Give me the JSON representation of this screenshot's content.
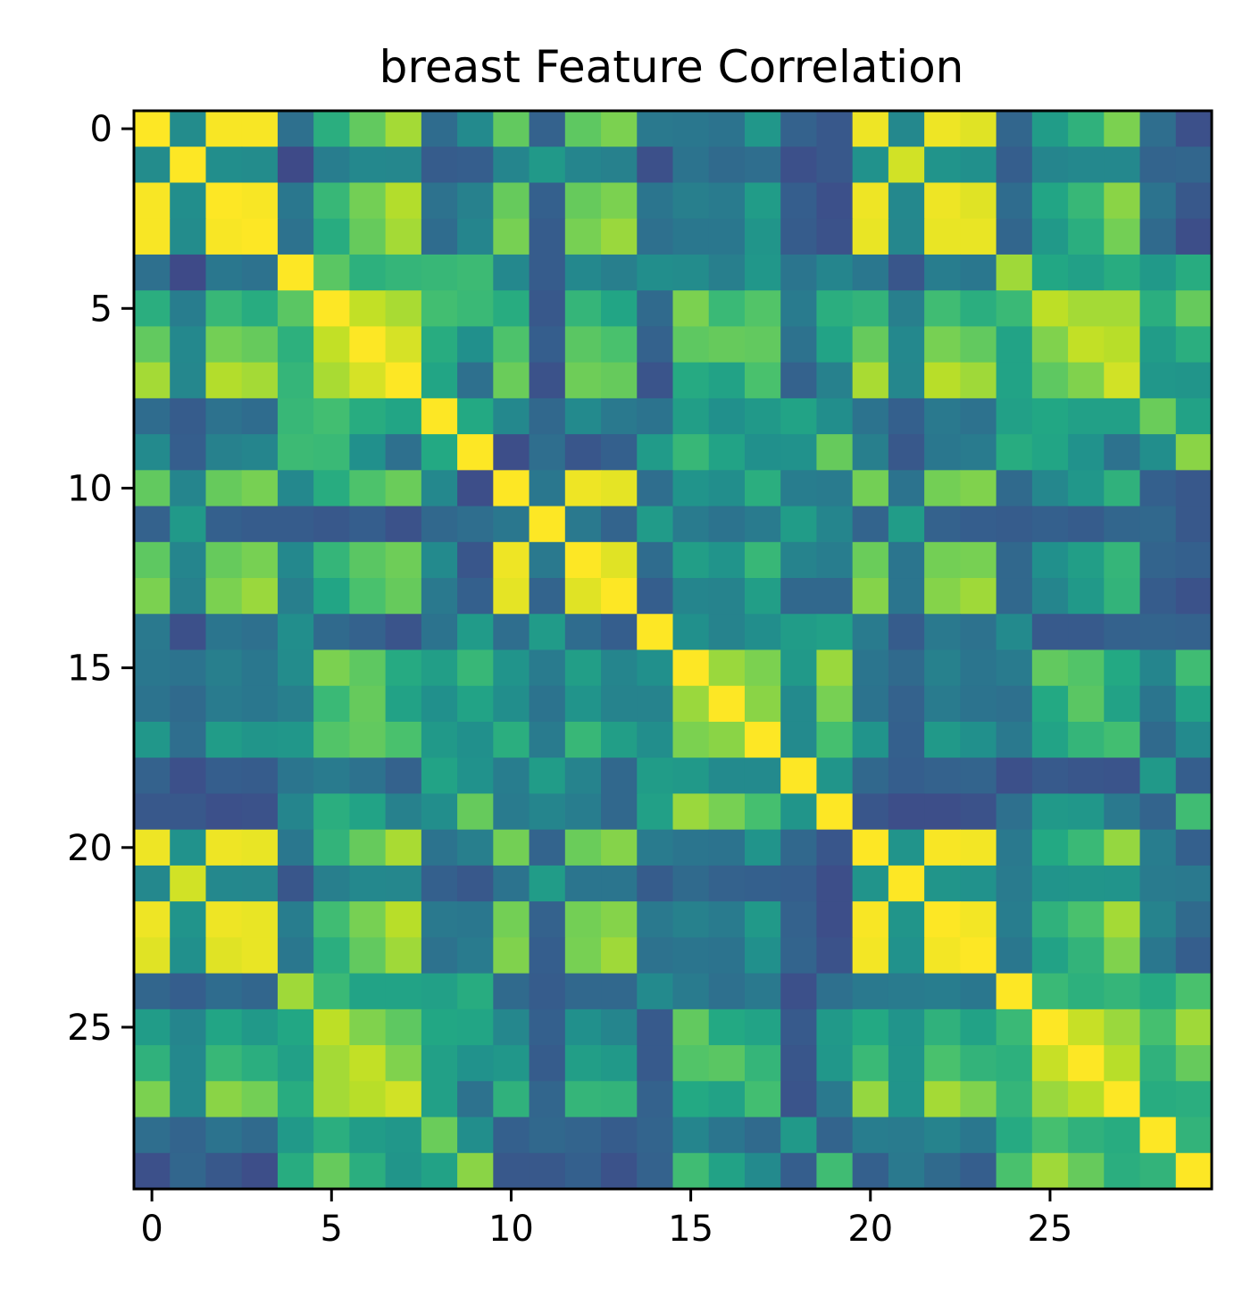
{
  "chart_data": {
    "type": "heatmap",
    "title": "breast Feature Correlation",
    "xlabel": "",
    "ylabel": "",
    "xticks": [
      "0",
      "5",
      "10",
      "15",
      "20",
      "25"
    ],
    "yticks": [
      "0",
      "5",
      "10",
      "15",
      "20",
      "25"
    ],
    "n": 30,
    "colormap": "viridis",
    "zlim": [
      -0.31,
      1.0
    ],
    "matrix": [
      [
        1.0,
        0.32,
        0.99,
        0.99,
        0.17,
        0.51,
        0.68,
        0.82,
        0.15,
        0.31,
        0.68,
        0.1,
        0.67,
        0.74,
        0.22,
        0.21,
        0.19,
        0.38,
        0.1,
        0.05,
        0.97,
        0.3,
        0.97,
        0.94,
        0.12,
        0.41,
        0.53,
        0.74,
        0.16,
        0.01
      ],
      [
        0.32,
        1.0,
        0.33,
        0.32,
        -0.02,
        0.24,
        0.3,
        0.29,
        0.07,
        0.08,
        0.28,
        0.39,
        0.28,
        0.26,
        0.01,
        0.19,
        0.14,
        0.16,
        0.01,
        0.05,
        0.35,
        0.91,
        0.36,
        0.34,
        0.08,
        0.28,
        0.3,
        0.3,
        0.11,
        0.12
      ],
      [
        0.99,
        0.33,
        1.0,
        0.99,
        0.21,
        0.56,
        0.72,
        0.85,
        0.18,
        0.26,
        0.69,
        0.09,
        0.69,
        0.74,
        0.2,
        0.25,
        0.23,
        0.41,
        0.08,
        0.01,
        0.97,
        0.3,
        0.97,
        0.94,
        0.15,
        0.46,
        0.56,
        0.77,
        0.19,
        0.05
      ],
      [
        0.99,
        0.32,
        0.99,
        1.0,
        0.18,
        0.5,
        0.69,
        0.82,
        0.15,
        0.28,
        0.73,
        0.07,
        0.73,
        0.8,
        0.17,
        0.21,
        0.21,
        0.37,
        0.07,
        0.02,
        0.96,
        0.29,
        0.96,
        0.96,
        0.12,
        0.39,
        0.51,
        0.72,
        0.14,
        0.0
      ],
      [
        0.17,
        -0.02,
        0.21,
        0.18,
        1.0,
        0.66,
        0.52,
        0.55,
        0.56,
        0.58,
        0.3,
        0.07,
        0.3,
        0.25,
        0.33,
        0.32,
        0.25,
        0.38,
        0.2,
        0.28,
        0.21,
        0.04,
        0.24,
        0.21,
        0.81,
        0.47,
        0.43,
        0.5,
        0.39,
        0.5
      ],
      [
        0.51,
        0.24,
        0.56,
        0.5,
        0.66,
        1.0,
        0.88,
        0.83,
        0.6,
        0.57,
        0.5,
        0.05,
        0.55,
        0.46,
        0.14,
        0.74,
        0.57,
        0.64,
        0.23,
        0.51,
        0.54,
        0.25,
        0.59,
        0.51,
        0.57,
        0.87,
        0.82,
        0.82,
        0.51,
        0.69
      ],
      [
        0.68,
        0.3,
        0.72,
        0.69,
        0.52,
        0.88,
        1.0,
        0.92,
        0.5,
        0.34,
        0.63,
        0.08,
        0.66,
        0.62,
        0.1,
        0.67,
        0.69,
        0.68,
        0.18,
        0.45,
        0.69,
        0.3,
        0.73,
        0.68,
        0.45,
        0.75,
        0.88,
        0.86,
        0.41,
        0.51
      ],
      [
        0.82,
        0.29,
        0.85,
        0.82,
        0.55,
        0.83,
        0.92,
        1.0,
        0.46,
        0.17,
        0.7,
        0.02,
        0.71,
        0.69,
        0.03,
        0.49,
        0.44,
        0.62,
        0.1,
        0.26,
        0.83,
        0.29,
        0.86,
        0.81,
        0.45,
        0.67,
        0.75,
        0.91,
        0.38,
        0.37
      ],
      [
        0.15,
        0.07,
        0.18,
        0.15,
        0.56,
        0.6,
        0.5,
        0.46,
        1.0,
        0.48,
        0.3,
        0.13,
        0.31,
        0.22,
        0.19,
        0.42,
        0.34,
        0.39,
        0.45,
        0.33,
        0.19,
        0.09,
        0.22,
        0.18,
        0.43,
        0.47,
        0.43,
        0.43,
        0.7,
        0.44
      ],
      [
        0.31,
        0.08,
        0.26,
        0.28,
        0.58,
        0.57,
        0.34,
        0.17,
        0.48,
        1.0,
        0.0,
        0.16,
        0.04,
        0.09,
        0.4,
        0.56,
        0.45,
        0.34,
        0.35,
        0.69,
        0.25,
        0.05,
        0.21,
        0.23,
        0.5,
        0.46,
        0.35,
        0.18,
        0.33,
        0.77
      ],
      [
        0.68,
        0.28,
        0.69,
        0.73,
        0.3,
        0.5,
        0.63,
        0.7,
        0.3,
        0.0,
        1.0,
        0.21,
        0.97,
        0.95,
        0.16,
        0.36,
        0.33,
        0.51,
        0.24,
        0.23,
        0.72,
        0.19,
        0.72,
        0.75,
        0.14,
        0.29,
        0.38,
        0.53,
        0.09,
        0.05
      ],
      [
        0.1,
        0.39,
        0.09,
        0.07,
        0.07,
        0.05,
        0.08,
        0.02,
        0.13,
        0.16,
        0.21,
        1.0,
        0.22,
        0.11,
        0.4,
        0.23,
        0.19,
        0.23,
        0.41,
        0.28,
        0.11,
        0.41,
        0.1,
        0.08,
        0.07,
        0.09,
        0.07,
        0.12,
        0.13,
        0.05
      ],
      [
        0.67,
        0.28,
        0.69,
        0.73,
        0.3,
        0.55,
        0.66,
        0.71,
        0.31,
        0.04,
        0.97,
        0.22,
        1.0,
        0.94,
        0.15,
        0.42,
        0.36,
        0.56,
        0.27,
        0.24,
        0.7,
        0.2,
        0.72,
        0.73,
        0.13,
        0.34,
        0.42,
        0.55,
        0.11,
        0.09
      ],
      [
        0.74,
        0.26,
        0.74,
        0.8,
        0.25,
        0.46,
        0.62,
        0.69,
        0.22,
        0.09,
        0.95,
        0.11,
        0.94,
        1.0,
        0.08,
        0.28,
        0.27,
        0.42,
        0.13,
        0.13,
        0.76,
        0.2,
        0.76,
        0.81,
        0.13,
        0.28,
        0.39,
        0.54,
        0.07,
        0.02
      ],
      [
        0.22,
        0.01,
        0.2,
        0.17,
        0.33,
        0.14,
        0.1,
        0.03,
        0.19,
        0.4,
        0.16,
        0.4,
        0.15,
        0.08,
        1.0,
        0.34,
        0.27,
        0.33,
        0.41,
        0.43,
        0.23,
        0.07,
        0.22,
        0.18,
        0.31,
        0.06,
        0.06,
        0.1,
        0.11,
        0.1
      ],
      [
        0.21,
        0.19,
        0.25,
        0.21,
        0.32,
        0.74,
        0.67,
        0.49,
        0.42,
        0.56,
        0.36,
        0.23,
        0.42,
        0.28,
        0.34,
        1.0,
        0.8,
        0.74,
        0.39,
        0.8,
        0.2,
        0.14,
        0.26,
        0.2,
        0.23,
        0.68,
        0.64,
        0.48,
        0.28,
        0.59
      ],
      [
        0.19,
        0.14,
        0.23,
        0.21,
        0.25,
        0.57,
        0.69,
        0.44,
        0.34,
        0.45,
        0.33,
        0.19,
        0.36,
        0.27,
        0.27,
        0.8,
        1.0,
        0.77,
        0.31,
        0.73,
        0.19,
        0.1,
        0.23,
        0.19,
        0.17,
        0.48,
        0.66,
        0.44,
        0.2,
        0.44
      ],
      [
        0.38,
        0.16,
        0.41,
        0.37,
        0.38,
        0.64,
        0.68,
        0.62,
        0.39,
        0.34,
        0.51,
        0.23,
        0.56,
        0.42,
        0.33,
        0.74,
        0.77,
        1.0,
        0.31,
        0.61,
        0.36,
        0.09,
        0.39,
        0.34,
        0.22,
        0.45,
        0.55,
        0.6,
        0.14,
        0.31
      ],
      [
        0.1,
        0.01,
        0.08,
        0.07,
        0.2,
        0.23,
        0.18,
        0.1,
        0.45,
        0.35,
        0.24,
        0.41,
        0.27,
        0.13,
        0.41,
        0.39,
        0.31,
        0.31,
        1.0,
        0.37,
        0.13,
        0.08,
        0.1,
        0.11,
        0.01,
        0.06,
        0.04,
        0.03,
        0.39,
        0.08
      ],
      [
        0.05,
        0.05,
        0.01,
        0.02,
        0.28,
        0.51,
        0.45,
        0.26,
        0.33,
        0.69,
        0.23,
        0.28,
        0.24,
        0.13,
        0.43,
        0.8,
        0.73,
        0.61,
        0.37,
        1.0,
        0.04,
        0.0,
        0.0,
        0.02,
        0.17,
        0.39,
        0.38,
        0.22,
        0.11,
        0.59
      ],
      [
        0.97,
        0.35,
        0.97,
        0.96,
        0.21,
        0.54,
        0.69,
        0.83,
        0.19,
        0.25,
        0.72,
        0.11,
        0.7,
        0.76,
        0.23,
        0.2,
        0.19,
        0.36,
        0.13,
        0.04,
        1.0,
        0.36,
        0.99,
        0.98,
        0.22,
        0.48,
        0.57,
        0.79,
        0.24,
        0.09
      ],
      [
        0.3,
        0.91,
        0.3,
        0.29,
        0.04,
        0.25,
        0.3,
        0.29,
        0.09,
        0.05,
        0.19,
        0.41,
        0.2,
        0.2,
        0.07,
        0.14,
        0.1,
        0.09,
        0.08,
        0.0,
        0.36,
        1.0,
        0.37,
        0.35,
        0.23,
        0.36,
        0.37,
        0.36,
        0.23,
        0.22
      ],
      [
        0.97,
        0.36,
        0.97,
        0.96,
        0.24,
        0.59,
        0.73,
        0.86,
        0.22,
        0.21,
        0.72,
        0.1,
        0.72,
        0.76,
        0.22,
        0.26,
        0.23,
        0.39,
        0.1,
        0.0,
        0.99,
        0.37,
        1.0,
        0.98,
        0.24,
        0.53,
        0.62,
        0.82,
        0.27,
        0.14
      ],
      [
        0.94,
        0.34,
        0.94,
        0.96,
        0.21,
        0.51,
        0.68,
        0.81,
        0.18,
        0.23,
        0.75,
        0.08,
        0.73,
        0.81,
        0.18,
        0.2,
        0.19,
        0.34,
        0.11,
        0.02,
        0.98,
        0.35,
        0.98,
        1.0,
        0.21,
        0.44,
        0.54,
        0.75,
        0.21,
        0.08
      ],
      [
        0.12,
        0.08,
        0.15,
        0.12,
        0.81,
        0.57,
        0.45,
        0.45,
        0.43,
        0.5,
        0.14,
        0.07,
        0.13,
        0.13,
        0.31,
        0.23,
        0.17,
        0.22,
        0.01,
        0.17,
        0.22,
        0.23,
        0.24,
        0.21,
        1.0,
        0.57,
        0.52,
        0.55,
        0.49,
        0.62
      ],
      [
        0.41,
        0.28,
        0.46,
        0.39,
        0.47,
        0.87,
        0.75,
        0.67,
        0.47,
        0.46,
        0.29,
        0.09,
        0.34,
        0.28,
        0.06,
        0.68,
        0.48,
        0.45,
        0.06,
        0.39,
        0.48,
        0.36,
        0.53,
        0.44,
        0.57,
        1.0,
        0.89,
        0.8,
        0.61,
        0.81
      ],
      [
        0.53,
        0.3,
        0.56,
        0.51,
        0.43,
        0.82,
        0.88,
        0.75,
        0.43,
        0.35,
        0.38,
        0.07,
        0.42,
        0.39,
        0.06,
        0.64,
        0.66,
        0.55,
        0.04,
        0.38,
        0.57,
        0.37,
        0.62,
        0.54,
        0.52,
        0.89,
        1.0,
        0.86,
        0.53,
        0.69
      ],
      [
        0.74,
        0.3,
        0.77,
        0.72,
        0.5,
        0.82,
        0.86,
        0.91,
        0.43,
        0.18,
        0.53,
        0.12,
        0.55,
        0.54,
        0.1,
        0.48,
        0.44,
        0.6,
        0.03,
        0.22,
        0.79,
        0.36,
        0.82,
        0.75,
        0.55,
        0.8,
        0.86,
        1.0,
        0.5,
        0.51
      ],
      [
        0.16,
        0.11,
        0.19,
        0.14,
        0.39,
        0.51,
        0.41,
        0.38,
        0.7,
        0.33,
        0.09,
        0.13,
        0.11,
        0.07,
        0.11,
        0.28,
        0.2,
        0.14,
        0.39,
        0.11,
        0.24,
        0.23,
        0.27,
        0.21,
        0.49,
        0.61,
        0.53,
        0.5,
        1.0,
        0.54
      ],
      [
        0.01,
        0.12,
        0.05,
        0.0,
        0.5,
        0.69,
        0.51,
        0.37,
        0.44,
        0.77,
        0.05,
        0.05,
        0.09,
        0.02,
        0.1,
        0.59,
        0.44,
        0.31,
        0.08,
        0.59,
        0.09,
        0.22,
        0.14,
        0.08,
        0.62,
        0.81,
        0.69,
        0.51,
        0.54,
        1.0
      ]
    ]
  }
}
